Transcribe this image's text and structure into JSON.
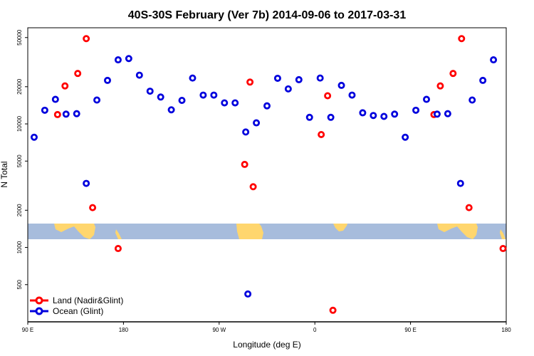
{
  "chart_data": {
    "type": "scatter",
    "title": "40S-30S February (Ver 7b)   2014-09-06 to 2017-03-31",
    "xlabel": "Longitude (deg E)",
    "ylabel": "N Total",
    "x_scale": "linear",
    "y_scale": "log",
    "xlim": [
      90,
      540
    ],
    "ylim": [
      250,
      60000
    ],
    "x_ticks": [
      {
        "value": 90,
        "label": "90 E"
      },
      {
        "value": 180,
        "label": "180"
      },
      {
        "value": 270,
        "label": "90 W"
      },
      {
        "value": 360,
        "label": "0"
      },
      {
        "value": 450,
        "label": "90 E"
      },
      {
        "value": 540,
        "label": "180"
      }
    ],
    "y_ticks": [
      {
        "value": 500,
        "label": "500"
      },
      {
        "value": 1000,
        "label": "1000"
      },
      {
        "value": 2000,
        "label": "2000"
      },
      {
        "value": 5000,
        "label": "5000"
      },
      {
        "value": 10000,
        "label": "10000"
      },
      {
        "value": 20000,
        "label": "20000"
      },
      {
        "value": 50000,
        "label": "50000"
      }
    ],
    "grid": false,
    "legend_position": "bottom-left",
    "series": [
      {
        "name": "Land (Nadir&Glint)",
        "color": "#ff0000",
        "points": [
          {
            "x": 118,
            "y": 11900
          },
          {
            "x": 125,
            "y": 20300
          },
          {
            "x": 137,
            "y": 25600
          },
          {
            "x": 145,
            "y": 49000
          },
          {
            "x": 151,
            "y": 2100
          },
          {
            "x": 175,
            "y": 980
          },
          {
            "x": 294,
            "y": 4700
          },
          {
            "x": 299,
            "y": 21800
          },
          {
            "x": 302,
            "y": 3100
          },
          {
            "x": 366,
            "y": 8200
          },
          {
            "x": 372,
            "y": 16900
          },
          {
            "x": 377,
            "y": 310
          },
          {
            "x": 472,
            "y": 11900
          },
          {
            "x": 478,
            "y": 20300
          },
          {
            "x": 490,
            "y": 25600
          },
          {
            "x": 498,
            "y": 49000
          },
          {
            "x": 505,
            "y": 2100
          },
          {
            "x": 537,
            "y": 980
          }
        ]
      },
      {
        "name": "Ocean (Glint)",
        "color": "#0000dd",
        "points": [
          {
            "x": 96,
            "y": 7800
          },
          {
            "x": 106,
            "y": 12900
          },
          {
            "x": 116,
            "y": 15800
          },
          {
            "x": 126,
            "y": 12000
          },
          {
            "x": 136,
            "y": 12100
          },
          {
            "x": 145,
            "y": 3300
          },
          {
            "x": 155,
            "y": 15600
          },
          {
            "x": 165,
            "y": 22500
          },
          {
            "x": 175,
            "y": 33000
          },
          {
            "x": 185,
            "y": 33800
          },
          {
            "x": 195,
            "y": 24800
          },
          {
            "x": 205,
            "y": 18400
          },
          {
            "x": 215,
            "y": 16500
          },
          {
            "x": 225,
            "y": 13000
          },
          {
            "x": 235,
            "y": 15500
          },
          {
            "x": 245,
            "y": 23500
          },
          {
            "x": 255,
            "y": 17100
          },
          {
            "x": 265,
            "y": 17100
          },
          {
            "x": 275,
            "y": 14800
          },
          {
            "x": 285,
            "y": 14800
          },
          {
            "x": 295,
            "y": 8600
          },
          {
            "x": 297,
            "y": 420
          },
          {
            "x": 305,
            "y": 10200
          },
          {
            "x": 315,
            "y": 14000
          },
          {
            "x": 325,
            "y": 23400
          },
          {
            "x": 335,
            "y": 19200
          },
          {
            "x": 345,
            "y": 22800
          },
          {
            "x": 355,
            "y": 11300
          },
          {
            "x": 365,
            "y": 23500
          },
          {
            "x": 375,
            "y": 11300
          },
          {
            "x": 385,
            "y": 20500
          },
          {
            "x": 395,
            "y": 17100
          },
          {
            "x": 405,
            "y": 12300
          },
          {
            "x": 415,
            "y": 11700
          },
          {
            "x": 425,
            "y": 11500
          },
          {
            "x": 435,
            "y": 12000
          },
          {
            "x": 445,
            "y": 7800
          },
          {
            "x": 455,
            "y": 12900
          },
          {
            "x": 465,
            "y": 15800
          },
          {
            "x": 475,
            "y": 12000
          },
          {
            "x": 485,
            "y": 12100
          },
          {
            "x": 497,
            "y": 3300
          },
          {
            "x": 508,
            "y": 15600
          },
          {
            "x": 518,
            "y": 22500
          },
          {
            "x": 528,
            "y": 33000
          }
        ]
      }
    ]
  },
  "background_map": {
    "ocean_color": "#a7bcdc",
    "land_color": "#ffd66e"
  }
}
